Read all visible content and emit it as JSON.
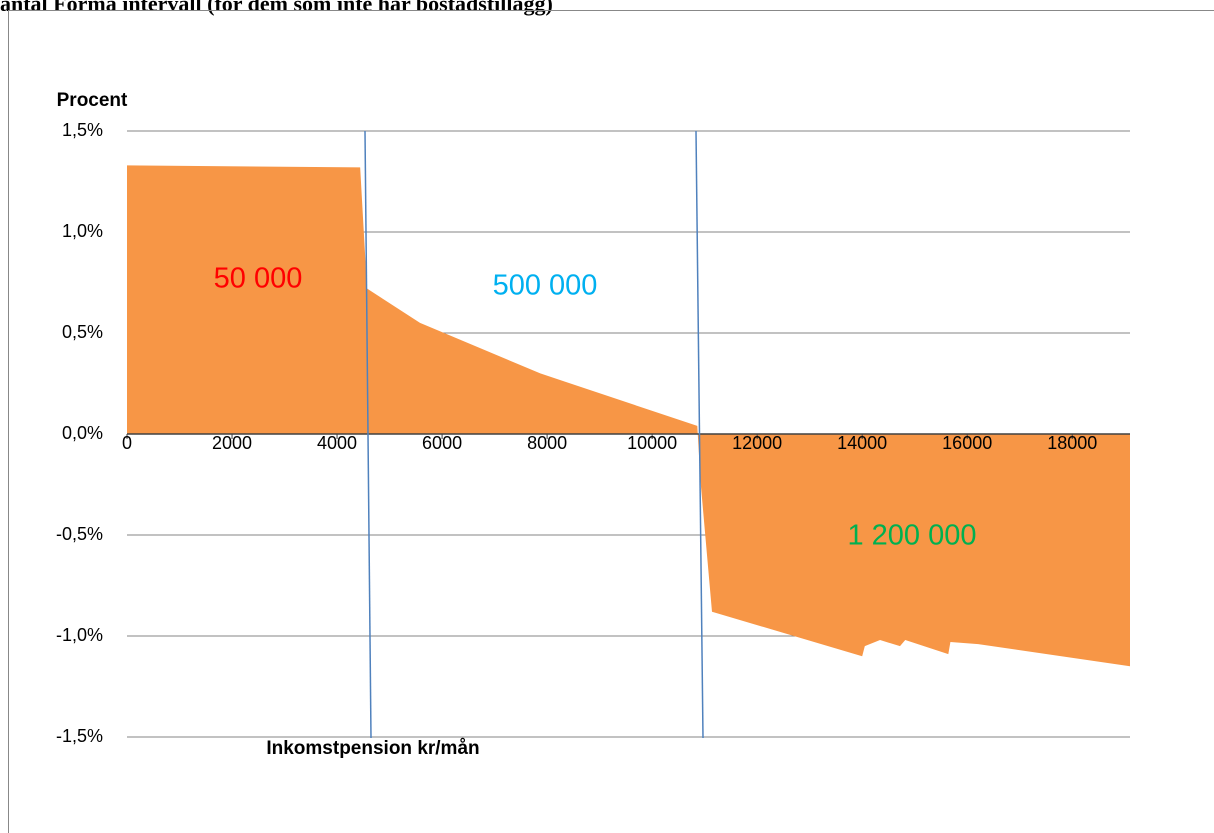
{
  "chart_data": {
    "type": "area",
    "title": "antal Forma intervall (för dem som inte har bostadstillägg)",
    "y_label": "Procent",
    "x_label": "Inkomstpension kr/mån",
    "x": [
      0,
      4440,
      4570,
      5580,
      7870,
      10860,
      10920,
      11140,
      14000,
      14050,
      14340,
      14720,
      14820,
      15640,
      15680,
      16210,
      19100
    ],
    "series": [
      {
        "name": null,
        "color": "#f79646",
        "values": [
          1.33,
          1.32,
          0.72,
          0.55,
          0.3,
          0.04,
          -0.23,
          -0.88,
          -1.1,
          -1.05,
          -1.02,
          -1.05,
          -1.02,
          -1.09,
          -1.03,
          -1.04,
          -1.15
        ]
      }
    ],
    "xlim": [
      0,
      19100
    ],
    "xticks": [
      0,
      2000,
      4000,
      6000,
      8000,
      10000,
      12000,
      14000,
      16000,
      18000
    ],
    "ylim": [
      -1.5,
      1.5
    ],
    "yticks": [
      {
        "value": -1.5,
        "label": "-1,5%"
      },
      {
        "value": -1.0,
        "label": "-1,0%"
      },
      {
        "value": -0.5,
        "label": "-0,5%"
      },
      {
        "value": 0.0,
        "label": "0,0%"
      },
      {
        "value": 0.5,
        "label": "0,5%"
      },
      {
        "value": 1.0,
        "label": "1,0%"
      },
      {
        "value": 1.5,
        "label": "1,5%"
      }
    ],
    "grid": true,
    "annotations": [
      {
        "text": "50 000",
        "color": "#ff0000"
      },
      {
        "text": "500 000",
        "color": "#00b0f0"
      },
      {
        "text": "1 200 000",
        "color": "#00b050"
      }
    ]
  }
}
